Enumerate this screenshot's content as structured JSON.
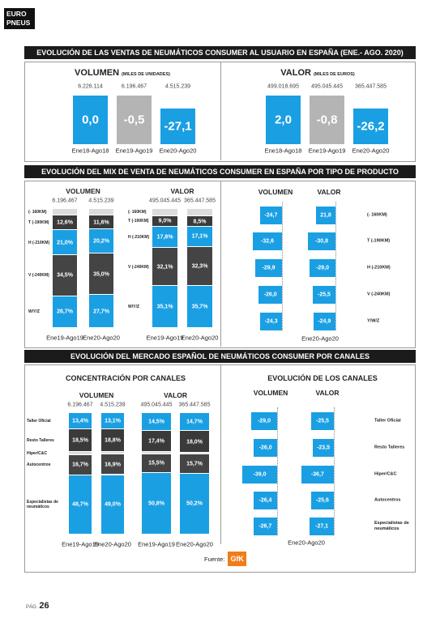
{
  "header": {
    "logo": [
      "EURO",
      "PNEUS"
    ]
  },
  "section1": {
    "title": "EVOLUCIÓN DE LAS VENTAS DE NEUMÁTICOS CONSUMER AL USUARIO EN ESPAÑA (ENE.- AGO. 2020)",
    "charts": [
      {
        "title": "VOLUMEN",
        "unit": "(MILES DE UNIDADES)",
        "periods": [
          "Ene18-Ago18",
          "Ene19-Ago19",
          "Ene20-Ago20"
        ],
        "totals": [
          6226114,
          6196467,
          4515239
        ],
        "total_labels": [
          "6.226.114",
          "6.196.467",
          "4.515.239"
        ],
        "changes": [
          0,
          -0.5,
          -27.1
        ],
        "change_labels": [
          "0,0",
          "-0,5",
          "-27,1"
        ],
        "colors": [
          "#1a9fe3",
          "#b4b4b4",
          "#1a9fe3"
        ]
      },
      {
        "title": "VALOR",
        "unit": "(MILES DE EUROS)",
        "periods": [
          "Ene18-Ago18",
          "Ene19-Ago19",
          "Ene20-Ago20"
        ],
        "totals": [
          499018695,
          495045445,
          365447585
        ],
        "total_labels": [
          "499.018.695",
          "495.045.445",
          "365.447.585"
        ],
        "changes": [
          2.0,
          -0.8,
          -26.2
        ],
        "change_labels": [
          "2,0",
          "-0,8",
          "-26,2"
        ],
        "colors": [
          "#1a9fe3",
          "#b4b4b4",
          "#1a9fe3"
        ]
      }
    ]
  },
  "section2": {
    "title": "EVOLUCIÓN DEL MIX DE VENTA DE NEUMÁTICOS CONSUMER EN ESPAÑA POR TIPO DE PRODUCTO",
    "mix": {
      "categories": [
        "(- 160KM)",
        "T (-190KM)",
        "H (-210KM)",
        "V (-240KM)",
        "W/Y/Z"
      ],
      "colors": [
        "#dcdcdc",
        "#3a3a3a",
        "#1a9fe3",
        "#444444",
        "#1a9fe3"
      ],
      "charts": [
        {
          "title": "VOLUMEN",
          "periods": [
            "Ene19-Ago19",
            "Ene20-Ago20"
          ],
          "totals": [
            6196467,
            4515239
          ],
          "total_labels": [
            "6.196.467",
            "4.515.239"
          ],
          "shares": [
            [
              5.2,
              12.6,
              21.0,
              34.5,
              26.7
            ],
            [
              5.5,
              11.6,
              20.2,
              35.0,
              27.7
            ]
          ],
          "share_labels": [
            [
              null,
              "12,6%",
              "21,0%",
              "34,5%",
              "26,7%"
            ],
            [
              null,
              "11,6%",
              "20,2%",
              "35,0%",
              "27,7%"
            ]
          ]
        },
        {
          "title": "VALOR",
          "periods": [
            "Ene19-Ago19",
            "Ene20-Ago20"
          ],
          "totals": [
            495045445,
            365447585
          ],
          "total_labels": [
            "495.045.445",
            "365.447.585"
          ],
          "shares": [
            [
              6.0,
              9.0,
              17.8,
              32.1,
              35.1
            ],
            [
              6.4,
              8.5,
              17.1,
              32.3,
              35.7
            ]
          ],
          "share_labels": [
            [
              null,
              "9,0%",
              "17,8%",
              "32,1%",
              "35,1%"
            ],
            [
              null,
              "8,5%",
              "17,1%",
              "32,3%",
              "35,7%"
            ]
          ]
        }
      ]
    },
    "evolution": {
      "categories": [
        "(- 160KM)",
        "T (-190KM)",
        "H (-210KM)",
        "V (-240KM)",
        "Y/W/Z"
      ],
      "period": "Ene20-Ago20",
      "color": "#1a9fe3",
      "series": [
        {
          "name": "VOLUMEN",
          "values": [
            -24.7,
            -32.6,
            -29.9,
            -26.0,
            -24.3
          ],
          "value_labels": [
            "-24,7",
            "-32,6",
            "-29,9",
            "-26,0",
            "-24,3"
          ]
        },
        {
          "name": "VALOR",
          "values": [
            21.8,
            -30.8,
            -29.0,
            -25.5,
            -24.9
          ],
          "value_labels": [
            "21,8",
            "-30,8",
            "-29,0",
            "-25,5",
            "-24,9"
          ]
        }
      ]
    }
  },
  "section3": {
    "title": "EVOLUCIÓN DEL MERCADO ESPAÑOL DE NEUMÁTICOS CONSUMER POR CANALES",
    "concentration": {
      "title": "CONCENTRACIÓN POR CANALES",
      "categories": [
        "Taller Oficial",
        "Resto Talleres",
        "Hiper/C&C",
        "Autocentros",
        "Especialistas de neumáticos"
      ],
      "colors": [
        "#1a9fe3",
        "#3a3a3a",
        "#dcdcdc",
        "#444444",
        "#1a9fe3"
      ],
      "charts": [
        {
          "title": "VOLUMEN",
          "periods": [
            "Ene19-Ago19",
            "Ene20-Ago20"
          ],
          "totals": [
            6196467,
            4515239
          ],
          "total_labels": [
            "6.196.467",
            "4.515.239"
          ],
          "shares": [
            [
              13.4,
              18.5,
              2.7,
              16.7,
              48.7
            ],
            [
              13.1,
              18.8,
              2.2,
              16.9,
              49.0
            ]
          ],
          "share_labels": [
            [
              "13,4%",
              "18,5%",
              null,
              "16,7%",
              "48,7%"
            ],
            [
              "13,1%",
              "18,8%",
              null,
              "16,9%",
              "49,0%"
            ]
          ]
        },
        {
          "title": "VALOR",
          "periods": [
            "Ene19-Ago19",
            "Ene20-Ago20"
          ],
          "totals": [
            495045445,
            365447585
          ],
          "total_labels": [
            "495.045.445",
            "365.447.585"
          ],
          "shares": [
            [
              14.5,
              17.4,
              1.8,
              15.5,
              50.8
            ],
            [
              14.7,
              18.0,
              1.4,
              15.7,
              50.2
            ]
          ],
          "share_labels": [
            [
              "14,5%",
              "17,4%",
              null,
              "15,5%",
              "50,8%"
            ],
            [
              "14,7%",
              "18,0%",
              null,
              "15,7%",
              "50,2%"
            ]
          ]
        }
      ]
    },
    "evolution": {
      "title": "EVOLUCIÓN DE LOS CANALES",
      "categories": [
        "Taller Oficial",
        "Resto Talleres",
        "Hiper/C&C",
        "Autocentros",
        "Especialistas de neumáticos"
      ],
      "period": "Ene20-Ago20",
      "color": "#1a9fe3",
      "series": [
        {
          "name": "VOLUMEN",
          "values": [
            -29.0,
            -26.0,
            -39.0,
            -26.4,
            -26.7
          ],
          "value_labels": [
            "-29,0",
            "-26,0",
            "-39,0",
            "-26,4",
            "-26,7"
          ]
        },
        {
          "name": "VALOR",
          "values": [
            -25.5,
            -23.5,
            -36.7,
            -25.6,
            -27.1
          ],
          "value_labels": [
            "-25,5",
            "-23,5",
            "-36,7",
            "-25,6",
            "-27,1"
          ]
        }
      ]
    },
    "source": {
      "label": "Fuente:",
      "logo": "GfK"
    }
  },
  "footer": {
    "page_label": "PÁG.",
    "page_number": 26
  }
}
